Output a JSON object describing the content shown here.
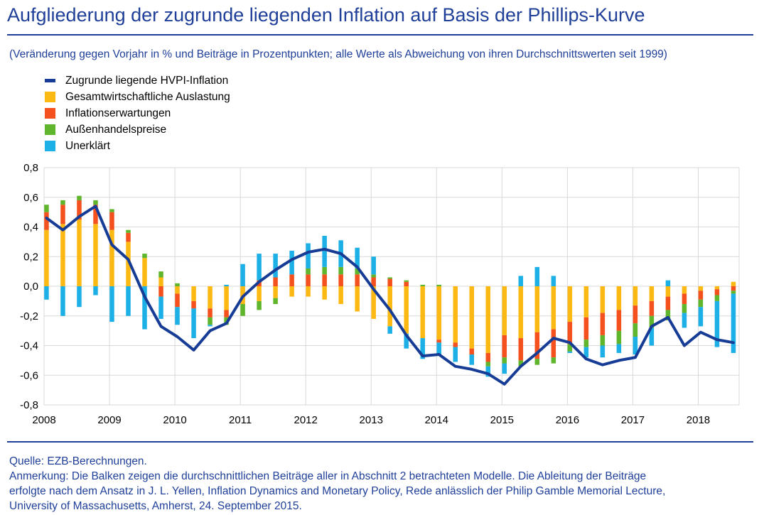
{
  "title": "Aufgliederung der zugrunde liegenden Inflation auf Basis der Phillips-Kurve",
  "subtitle": "(Veränderung gegen Vorjahr in % und Beiträge in Prozentpunkten; alle Werte als Abweichung von ihren Durchschnittswerten seit 1999)",
  "footer": {
    "source": "Quelle: EZB-Berechnungen.",
    "note_line1": "Anmerkung: Die Balken zeigen die durchschnittlichen Beiträge aller in Abschnitt 2 betrachteten Modelle. Die Ableitung der Beiträge",
    "note_line2": "erfolgte nach dem Ansatz in J. L. Yellen, Inflation Dynamics and Monetary Policy, Rede anlässlich der Philip Gamble Memorial Lecture,",
    "note_line3": "University of Massachusetts, Amherst, 24. September 2015."
  },
  "colors": {
    "line": "#173c96",
    "auslastung": "#fdb913",
    "erwartungen": "#f4511e",
    "aussenhandel": "#5fb52b",
    "unerklaert": "#1cb0e6",
    "grid": "#d9d9d9"
  },
  "legend": [
    {
      "label": "Zugrunde liegende HVPI-Inflation",
      "kind": "line",
      "color": "#173c96"
    },
    {
      "label": "Gesamtwirtschaftliche Auslastung",
      "kind": "bar",
      "color": "#fdb913"
    },
    {
      "label": "Inflationserwartungen",
      "kind": "bar",
      "color": "#f4511e"
    },
    {
      "label": "Außenhandelspreise",
      "kind": "bar",
      "color": "#5fb52b"
    },
    {
      "label": "Unerklärt",
      "kind": "bar",
      "color": "#1cb0e6"
    }
  ],
  "chart_data": {
    "type": "bar",
    "stacked": true,
    "title": "Aufgliederung der zugrunde liegenden Inflation auf Basis der Phillips-Kurve",
    "xlabel": "",
    "ylabel": "",
    "ylim": [
      -0.8,
      0.8
    ],
    "yticks": [
      "0,8",
      "0,6",
      "0,4",
      "0,2",
      "0,0",
      "-0,2",
      "-0,4",
      "-0,6",
      "-0,8"
    ],
    "year_labels": [
      "2008",
      "2009",
      "2010",
      "2011",
      "2012",
      "2013",
      "2014",
      "2015",
      "2016",
      "2017",
      "2018"
    ],
    "grid": true,
    "legend_position": "top-left",
    "categories": [
      "2008Q1",
      "2008Q2",
      "2008Q3",
      "2008Q4",
      "2009Q1",
      "2009Q2",
      "2009Q3",
      "2009Q4",
      "2010Q1",
      "2010Q2",
      "2010Q3",
      "2010Q4",
      "2011Q1",
      "2011Q2",
      "2011Q3",
      "2011Q4",
      "2012Q1",
      "2012Q2",
      "2012Q3",
      "2012Q4",
      "2013Q1",
      "2013Q2",
      "2013Q3",
      "2013Q4",
      "2014Q1",
      "2014Q2",
      "2014Q3",
      "2014Q4",
      "2015Q1",
      "2015Q2",
      "2015Q3",
      "2015Q4",
      "2016Q1",
      "2016Q2",
      "2016Q3",
      "2016Q4",
      "2017Q1",
      "2017Q2",
      "2017Q3",
      "2017Q4",
      "2018Q1",
      "2018Q2",
      "2018Q3"
    ],
    "series": [
      {
        "name": "Gesamtwirtschaftliche Auslastung",
        "values": [
          0.38,
          0.42,
          0.45,
          0.42,
          0.38,
          0.3,
          0.19,
          0.06,
          -0.05,
          -0.1,
          -0.15,
          -0.16,
          -0.12,
          -0.1,
          -0.08,
          -0.07,
          -0.07,
          -0.09,
          -0.12,
          -0.17,
          -0.22,
          -0.27,
          -0.32,
          -0.35,
          -0.36,
          -0.38,
          -0.42,
          -0.45,
          -0.33,
          -0.35,
          -0.31,
          -0.29,
          -0.24,
          -0.21,
          -0.18,
          -0.16,
          -0.13,
          -0.1,
          -0.07,
          -0.05,
          -0.03,
          -0.02,
          0.03
        ]
      },
      {
        "name": "Inflationserwartungen",
        "values": [
          0.12,
          0.13,
          0.13,
          0.13,
          0.12,
          0.06,
          0.0,
          -0.07,
          -0.09,
          -0.05,
          -0.06,
          -0.05,
          0.0,
          0.04,
          0.06,
          0.08,
          0.08,
          0.08,
          0.08,
          0.08,
          0.06,
          0.05,
          0.03,
          0.0,
          -0.02,
          -0.03,
          -0.04,
          -0.06,
          -0.15,
          -0.15,
          -0.18,
          -0.19,
          -0.15,
          -0.15,
          -0.15,
          -0.14,
          -0.12,
          -0.1,
          -0.09,
          -0.07,
          -0.06,
          -0.04,
          -0.03
        ]
      },
      {
        "name": "Außenhandelspreise",
        "values": [
          0.05,
          0.03,
          0.03,
          0.03,
          0.02,
          0.02,
          0.03,
          0.04,
          0.02,
          0.0,
          -0.05,
          -0.05,
          -0.08,
          -0.06,
          -0.04,
          0.0,
          0.04,
          0.05,
          0.05,
          0.04,
          0.02,
          0.01,
          0.01,
          0.01,
          0.01,
          0.0,
          0.0,
          -0.03,
          -0.04,
          -0.04,
          -0.04,
          -0.04,
          -0.05,
          -0.05,
          -0.07,
          -0.09,
          -0.09,
          -0.08,
          -0.07,
          -0.06,
          -0.05,
          -0.04,
          -0.02
        ]
      },
      {
        "name": "Unerklärt",
        "values": [
          -0.09,
          -0.2,
          -0.14,
          -0.06,
          -0.24,
          -0.2,
          -0.29,
          -0.15,
          -0.12,
          -0.2,
          -0.01,
          0.01,
          0.15,
          0.18,
          0.16,
          0.16,
          0.17,
          0.21,
          0.18,
          0.14,
          0.12,
          -0.05,
          -0.1,
          -0.14,
          -0.08,
          -0.1,
          -0.07,
          -0.07,
          -0.07,
          0.07,
          0.13,
          0.07,
          -0.01,
          -0.07,
          -0.08,
          -0.06,
          -0.12,
          -0.12,
          0.04,
          -0.1,
          -0.13,
          -0.31,
          -0.4
        ]
      },
      {
        "name": "Zugrunde liegende HVPI-Inflation",
        "kind": "line",
        "values": [
          0.46,
          0.38,
          0.47,
          0.54,
          0.28,
          0.18,
          -0.07,
          -0.27,
          -0.34,
          -0.43,
          -0.3,
          -0.25,
          -0.07,
          0.03,
          0.11,
          0.18,
          0.23,
          0.25,
          0.22,
          0.13,
          -0.02,
          -0.16,
          -0.33,
          -0.47,
          -0.46,
          -0.54,
          -0.56,
          -0.59,
          -0.66,
          -0.54,
          -0.45,
          -0.35,
          -0.38,
          -0.49,
          -0.53,
          -0.5,
          -0.48,
          -0.27,
          -0.21,
          -0.4,
          -0.31,
          -0.36,
          -0.38
        ]
      }
    ]
  }
}
